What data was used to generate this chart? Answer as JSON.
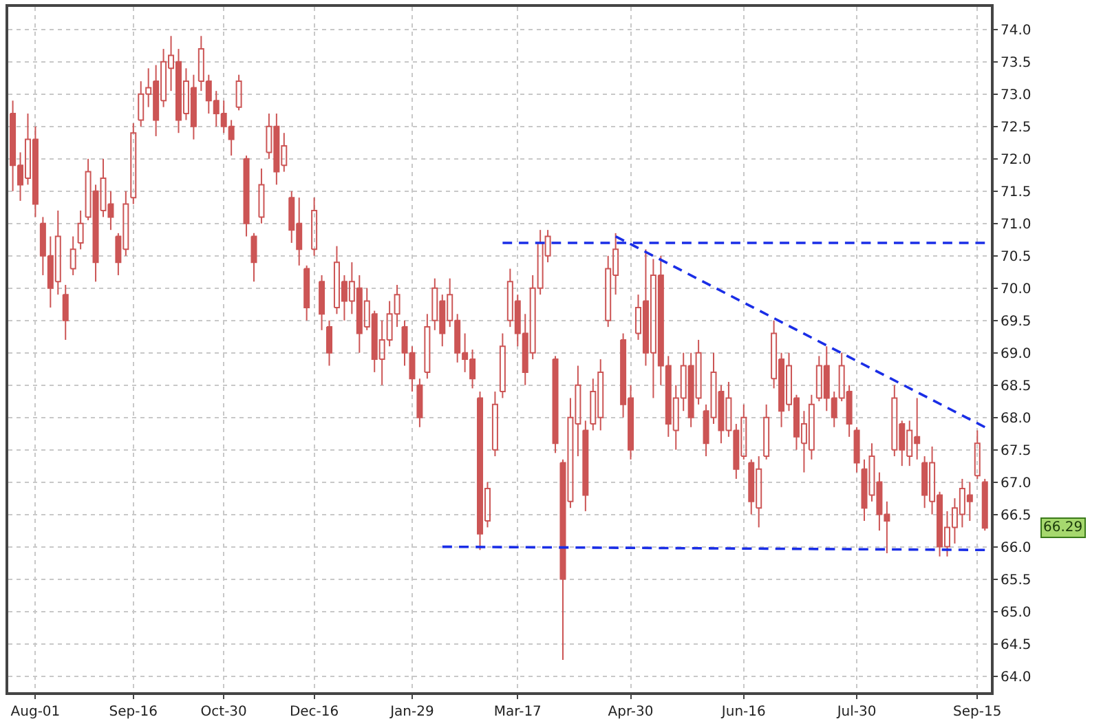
{
  "chart_data": {
    "type": "candlestick",
    "color": "#cc5555",
    "grid": true,
    "categories": [
      null,
      null,
      null,
      "Aug-01",
      null,
      null,
      null,
      null,
      null,
      null,
      null,
      null,
      null,
      null,
      null,
      null,
      "Sep-16",
      null,
      null,
      null,
      null,
      null,
      null,
      null,
      null,
      null,
      null,
      null,
      "Oct-30",
      null,
      null,
      null,
      null,
      null,
      null,
      null,
      null,
      null,
      null,
      null,
      "Dec-16",
      null,
      null,
      null,
      null,
      null,
      null,
      null,
      null,
      null,
      null,
      null,
      null,
      "Jan-29",
      null,
      null,
      null,
      null,
      null,
      null,
      null,
      null,
      null,
      null,
      null,
      null,
      null,
      "Mar-17",
      null,
      null,
      null,
      null,
      null,
      null,
      null,
      null,
      null,
      null,
      null,
      null,
      null,
      null,
      "Apr-30",
      null,
      null,
      null,
      null,
      null,
      null,
      null,
      null,
      null,
      null,
      null,
      null,
      null,
      null,
      "Jun-16",
      null,
      null,
      null,
      null,
      null,
      null,
      null,
      null,
      null,
      null,
      null,
      null,
      null,
      null,
      "Jul-30",
      null,
      null,
      null,
      null,
      null,
      null,
      null,
      null,
      null,
      null,
      null,
      null,
      null,
      null,
      null,
      "Sep-15",
      null
    ],
    "ohlc": [
      [
        72.7,
        72.9,
        71.5,
        71.9
      ],
      [
        71.9,
        72.1,
        71.35,
        71.6
      ],
      [
        71.7,
        72.7,
        71.6,
        72.3
      ],
      [
        72.3,
        72.5,
        71.1,
        71.3
      ],
      [
        71.0,
        71.1,
        70.2,
        70.5
      ],
      [
        70.5,
        70.8,
        69.7,
        70.0
      ],
      [
        70.1,
        71.2,
        69.9,
        70.8
      ],
      [
        69.9,
        70.05,
        69.2,
        69.5
      ],
      [
        70.3,
        70.8,
        70.2,
        70.6
      ],
      [
        70.7,
        71.2,
        70.6,
        71.0
      ],
      [
        71.1,
        72.0,
        71.05,
        71.8
      ],
      [
        71.5,
        71.6,
        70.1,
        70.4
      ],
      [
        71.2,
        72.0,
        71.1,
        71.7
      ],
      [
        71.3,
        71.5,
        70.9,
        71.1
      ],
      [
        70.8,
        70.85,
        70.2,
        70.4
      ],
      [
        70.6,
        71.5,
        70.5,
        71.3
      ],
      [
        71.4,
        72.55,
        71.3,
        72.4
      ],
      [
        72.6,
        73.2,
        72.5,
        73.0
      ],
      [
        73.0,
        73.4,
        72.8,
        73.1
      ],
      [
        73.2,
        73.45,
        72.35,
        72.6
      ],
      [
        72.9,
        73.7,
        72.8,
        73.5
      ],
      [
        73.4,
        73.9,
        73.05,
        73.6
      ],
      [
        73.5,
        73.7,
        72.4,
        72.6
      ],
      [
        72.7,
        73.4,
        72.6,
        73.2
      ],
      [
        73.1,
        73.3,
        72.3,
        72.5
      ],
      [
        73.2,
        73.9,
        73.05,
        73.7
      ],
      [
        73.2,
        73.3,
        72.7,
        72.9
      ],
      [
        72.9,
        73.05,
        72.5,
        72.7
      ],
      [
        72.7,
        72.9,
        72.4,
        72.5
      ],
      [
        72.5,
        72.6,
        72.05,
        72.3
      ],
      [
        72.8,
        73.3,
        72.75,
        73.2
      ],
      [
        72.0,
        72.05,
        70.8,
        71.0
      ],
      [
        70.8,
        70.85,
        70.1,
        70.4
      ],
      [
        71.1,
        71.85,
        71.0,
        71.6
      ],
      [
        72.1,
        72.7,
        72.0,
        72.5
      ],
      [
        72.5,
        72.7,
        71.6,
        71.8
      ],
      [
        71.9,
        72.4,
        71.8,
        72.2
      ],
      [
        71.4,
        71.5,
        70.7,
        70.9
      ],
      [
        71.0,
        71.4,
        70.35,
        70.6
      ],
      [
        70.3,
        70.35,
        69.5,
        69.7
      ],
      [
        70.6,
        71.4,
        70.5,
        71.2
      ],
      [
        70.1,
        70.2,
        69.35,
        69.6
      ],
      [
        69.4,
        69.5,
        68.8,
        69.0
      ],
      [
        69.7,
        70.65,
        69.6,
        70.4
      ],
      [
        70.1,
        70.2,
        69.5,
        69.8
      ],
      [
        69.8,
        70.4,
        69.6,
        70.1
      ],
      [
        70.0,
        70.2,
        69.0,
        69.3
      ],
      [
        69.4,
        70.0,
        69.35,
        69.8
      ],
      [
        69.6,
        69.65,
        68.7,
        68.9
      ],
      [
        68.9,
        69.5,
        68.5,
        69.2
      ],
      [
        69.2,
        69.8,
        69.1,
        69.6
      ],
      [
        69.6,
        70.05,
        69.4,
        69.9
      ],
      [
        69.4,
        69.5,
        68.8,
        69.0
      ],
      [
        69.0,
        69.1,
        68.4,
        68.6
      ],
      [
        68.5,
        68.6,
        67.85,
        68.0
      ],
      [
        68.7,
        69.6,
        68.6,
        69.4
      ],
      [
        69.5,
        70.15,
        69.35,
        70.0
      ],
      [
        69.8,
        69.9,
        69.1,
        69.3
      ],
      [
        69.5,
        70.15,
        69.4,
        69.9
      ],
      [
        69.5,
        69.6,
        68.85,
        69.0
      ],
      [
        69.0,
        69.3,
        68.7,
        68.9
      ],
      [
        68.9,
        69.05,
        68.45,
        68.6
      ],
      [
        68.3,
        68.4,
        65.95,
        66.2
      ],
      [
        66.4,
        67.0,
        66.3,
        66.9
      ],
      [
        67.5,
        68.4,
        67.4,
        68.2
      ],
      [
        68.4,
        69.3,
        68.3,
        69.1
      ],
      [
        69.5,
        70.3,
        69.4,
        70.1
      ],
      [
        69.8,
        69.9,
        69.1,
        69.3
      ],
      [
        69.3,
        69.6,
        68.5,
        68.7
      ],
      [
        69.0,
        70.2,
        68.9,
        70.0
      ],
      [
        70.0,
        70.9,
        69.9,
        70.7
      ],
      [
        70.5,
        70.9,
        70.4,
        70.8
      ],
      [
        68.9,
        68.95,
        67.45,
        67.6
      ],
      [
        67.3,
        67.35,
        64.25,
        65.5
      ],
      [
        66.7,
        68.3,
        66.6,
        68.0
      ],
      [
        67.9,
        68.8,
        67.4,
        68.5
      ],
      [
        67.8,
        67.95,
        66.55,
        66.8
      ],
      [
        67.9,
        68.6,
        67.8,
        68.4
      ],
      [
        68.0,
        68.9,
        67.8,
        68.7
      ],
      [
        69.5,
        70.5,
        69.4,
        70.3
      ],
      [
        70.2,
        70.85,
        69.9,
        70.6
      ],
      [
        69.2,
        69.3,
        68.0,
        68.2
      ],
      [
        68.3,
        68.5,
        67.35,
        67.5
      ],
      [
        69.3,
        69.9,
        69.2,
        69.7
      ],
      [
        69.8,
        70.6,
        68.8,
        69.0
      ],
      [
        69.0,
        70.45,
        68.3,
        70.2
      ],
      [
        70.2,
        70.5,
        68.5,
        68.8
      ],
      [
        68.8,
        68.95,
        67.7,
        67.9
      ],
      [
        67.8,
        68.5,
        67.5,
        68.3
      ],
      [
        68.3,
        69.0,
        68.1,
        68.8
      ],
      [
        68.8,
        69.0,
        67.85,
        68.0
      ],
      [
        68.3,
        69.2,
        68.2,
        69.0
      ],
      [
        68.1,
        68.2,
        67.4,
        67.6
      ],
      [
        68.0,
        69.0,
        67.9,
        68.7
      ],
      [
        68.4,
        68.5,
        67.6,
        67.8
      ],
      [
        67.8,
        68.55,
        67.7,
        68.3
      ],
      [
        67.8,
        67.9,
        67.05,
        67.2
      ],
      [
        67.4,
        68.2,
        67.35,
        68.0
      ],
      [
        67.3,
        67.35,
        66.5,
        66.7
      ],
      [
        66.6,
        67.4,
        66.3,
        67.2
      ],
      [
        67.4,
        68.2,
        67.35,
        68.0
      ],
      [
        68.6,
        69.5,
        68.45,
        69.3
      ],
      [
        68.9,
        69.0,
        67.85,
        68.1
      ],
      [
        68.2,
        69.0,
        68.1,
        68.8
      ],
      [
        68.3,
        68.35,
        67.5,
        67.7
      ],
      [
        67.6,
        68.1,
        67.15,
        67.9
      ],
      [
        67.5,
        68.35,
        67.35,
        68.2
      ],
      [
        68.3,
        68.95,
        68.25,
        68.8
      ],
      [
        68.8,
        69.1,
        68.1,
        68.3
      ],
      [
        68.3,
        68.4,
        67.85,
        68.0
      ],
      [
        68.3,
        69.0,
        68.25,
        68.8
      ],
      [
        68.4,
        68.5,
        67.7,
        67.9
      ],
      [
        67.8,
        67.85,
        67.15,
        67.3
      ],
      [
        67.2,
        67.35,
        66.4,
        66.6
      ],
      [
        66.8,
        67.6,
        66.7,
        67.4
      ],
      [
        67.0,
        67.15,
        66.25,
        66.5
      ],
      [
        66.5,
        66.7,
        65.9,
        66.4
      ],
      [
        67.5,
        68.5,
        67.4,
        68.3
      ],
      [
        67.9,
        67.95,
        67.25,
        67.5
      ],
      [
        67.4,
        67.95,
        67.25,
        67.8
      ],
      [
        67.7,
        68.3,
        67.35,
        67.6
      ],
      [
        67.3,
        67.4,
        66.6,
        66.8
      ],
      [
        66.7,
        67.55,
        66.5,
        67.3
      ],
      [
        66.8,
        66.85,
        65.85,
        66.0
      ],
      [
        66.0,
        66.55,
        65.85,
        66.3
      ],
      [
        66.3,
        66.75,
        66.05,
        66.6
      ],
      [
        66.5,
        67.05,
        66.3,
        66.9
      ],
      [
        66.8,
        67.0,
        66.4,
        66.7
      ],
      [
        67.1,
        67.8,
        67.05,
        67.6
      ],
      [
        67.0,
        67.05,
        66.25,
        66.29
      ]
    ],
    "series": [
      {
        "type": "line",
        "color": "#1a2ee6",
        "line_style": "dashed",
        "values": [
          null,
          null,
          null,
          null,
          null,
          null,
          null,
          null,
          null,
          null,
          null,
          null,
          null,
          null,
          null,
          null,
          null,
          null,
          null,
          null,
          null,
          null,
          null,
          null,
          null,
          null,
          null,
          null,
          null,
          null,
          null,
          null,
          null,
          null,
          null,
          null,
          null,
          null,
          null,
          null,
          null,
          null,
          null,
          null,
          null,
          null,
          null,
          null,
          null,
          null,
          null,
          null,
          null,
          null,
          null,
          null,
          null,
          null,
          null,
          null,
          null,
          null,
          null,
          null,
          null,
          70.7,
          null,
          null,
          null,
          null,
          null,
          null,
          null,
          null,
          null,
          null,
          null,
          null,
          null,
          null,
          null,
          null,
          null,
          null,
          null,
          null,
          null,
          null,
          null,
          null,
          null,
          null,
          null,
          null,
          null,
          null,
          null,
          null,
          null,
          null,
          null,
          null,
          null,
          null,
          null,
          null,
          null,
          null,
          null,
          null,
          null,
          null,
          null,
          null,
          null,
          null,
          null,
          null,
          null,
          null,
          null,
          null,
          null,
          null,
          null,
          null,
          null,
          null,
          null,
          70.7
        ]
      },
      {
        "type": "line",
        "color": "#1a2ee6",
        "line_style": "dashed",
        "values": [
          null,
          null,
          null,
          null,
          null,
          null,
          null,
          null,
          null,
          null,
          null,
          null,
          null,
          null,
          null,
          null,
          null,
          null,
          null,
          null,
          null,
          null,
          null,
          null,
          null,
          null,
          null,
          null,
          null,
          null,
          null,
          null,
          null,
          null,
          null,
          null,
          null,
          null,
          null,
          null,
          null,
          null,
          null,
          null,
          null,
          null,
          null,
          null,
          null,
          null,
          null,
          null,
          null,
          null,
          null,
          null,
          null,
          null,
          null,
          null,
          null,
          null,
          null,
          null,
          null,
          null,
          null,
          null,
          null,
          null,
          null,
          null,
          null,
          null,
          null,
          null,
          null,
          null,
          null,
          null,
          70.8,
          null,
          null,
          null,
          null,
          null,
          null,
          null,
          null,
          null,
          null,
          null,
          null,
          null,
          null,
          null,
          null,
          null,
          null,
          null,
          null,
          null,
          null,
          null,
          null,
          null,
          null,
          null,
          null,
          null,
          null,
          null,
          null,
          null,
          null,
          null,
          null,
          null,
          null,
          null,
          null,
          null,
          null,
          null,
          null,
          null,
          null,
          null,
          null,
          67.85
        ]
      },
      {
        "type": "line",
        "color": "#1a2ee6",
        "line_style": "dashed",
        "values": [
          null,
          null,
          null,
          null,
          null,
          null,
          null,
          null,
          null,
          null,
          null,
          null,
          null,
          null,
          null,
          null,
          null,
          null,
          null,
          null,
          null,
          null,
          null,
          null,
          null,
          null,
          null,
          null,
          null,
          null,
          null,
          null,
          null,
          null,
          null,
          null,
          null,
          null,
          null,
          null,
          null,
          null,
          null,
          null,
          null,
          null,
          null,
          null,
          null,
          null,
          null,
          null,
          null,
          null,
          null,
          null,
          null,
          66.0,
          null,
          null,
          null,
          null,
          null,
          null,
          null,
          null,
          null,
          null,
          null,
          null,
          null,
          null,
          null,
          null,
          null,
          null,
          null,
          null,
          null,
          null,
          null,
          null,
          null,
          null,
          null,
          null,
          null,
          null,
          null,
          null,
          null,
          null,
          null,
          null,
          null,
          null,
          null,
          null,
          null,
          null,
          null,
          null,
          null,
          null,
          null,
          null,
          null,
          null,
          null,
          null,
          null,
          null,
          null,
          null,
          null,
          null,
          null,
          null,
          null,
          null,
          null,
          null,
          null,
          null,
          null,
          null,
          null,
          null,
          null,
          65.95
        ]
      }
    ],
    "ylim": [
      63.75,
      74.35
    ],
    "yticks": [
      {
        "value": 64,
        "label": "64.0"
      },
      64.5,
      {
        "value": 65,
        "label": "65.0"
      },
      65.5,
      {
        "value": 66,
        "label": "66.0"
      },
      66.5,
      {
        "value": 67,
        "label": "67.0"
      },
      67.5,
      {
        "value": 68,
        "label": "68.0"
      },
      68.5,
      {
        "value": 69,
        "label": "69.0"
      },
      69.5,
      {
        "value": 70,
        "label": "70.0"
      },
      70.5,
      {
        "value": 71,
        "label": "71.0"
      },
      71.5,
      {
        "value": 72,
        "label": "72.0"
      },
      72.5,
      {
        "value": 73,
        "label": "73.0"
      },
      73.5,
      {
        "value": 74,
        "label": "74.0"
      }
    ],
    "annotations": [
      "66.29"
    ]
  }
}
